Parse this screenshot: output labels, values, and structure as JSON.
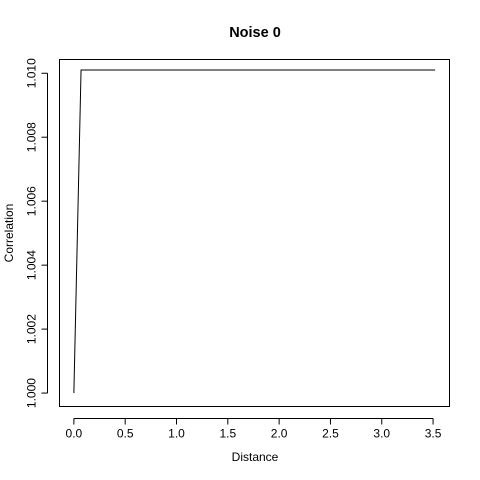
{
  "chart_data": {
    "type": "line",
    "title": "Noise 0",
    "xlabel": "Distance",
    "ylabel": "Correlation",
    "xlim": [
      -0.14,
      3.66
    ],
    "ylim": [
      0.99958,
      1.01043
    ],
    "xticks": [
      0,
      0.5,
      1,
      1.5,
      2,
      2.5,
      3,
      3.5
    ],
    "xtick_labels": [
      "0.0",
      "0.5",
      "1.0",
      "1.5",
      "2.0",
      "2.5",
      "3.0",
      "3.5"
    ],
    "yticks": [
      1.0,
      1.002,
      1.004,
      1.006,
      1.008,
      1.01
    ],
    "ytick_labels": [
      "1.000",
      "1.002",
      "1.004",
      "1.006",
      "1.008",
      "1.010"
    ],
    "grid": false,
    "legend": "none",
    "series": [
      {
        "x": [
          0.0,
          0.07,
          3.52
        ],
        "y": [
          1.0,
          1.0101,
          1.0101
        ]
      }
    ]
  }
}
